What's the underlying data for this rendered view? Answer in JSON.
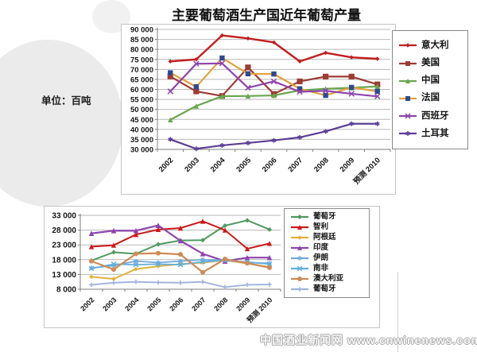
{
  "page": {
    "title": "主要葡萄酒生产国近年葡萄产量",
    "unit_label": "单位：百吨",
    "watermark": "中国酒业新闻网 www.cnwinenews.com"
  },
  "chart_data": [
    {
      "type": "line",
      "title": "",
      "categories": [
        "2002",
        "2003",
        "2004",
        "2005",
        "2006",
        "2007",
        "2008",
        "2009",
        "预测 2010"
      ],
      "xlabel": "",
      "ylabel": "",
      "ylim": [
        30000,
        90000
      ],
      "ytick_step": 5000,
      "grid": true,
      "legend_position": "right",
      "series": [
        {
          "name": "意大利",
          "color": "#C21E1E",
          "marker": "diamond",
          "marker_size": 2.7,
          "line_width": 2.4,
          "values": [
            74000,
            75000,
            87000,
            85500,
            83500,
            74000,
            78300,
            76000,
            75300
          ]
        },
        {
          "name": "美国",
          "color": "#9E3B35",
          "marker": "square",
          "marker_size": 3.6,
          "line_width": 2.2,
          "values": [
            66500,
            59000,
            56700,
            71000,
            57700,
            64000,
            66400,
            66400,
            62500
          ]
        },
        {
          "name": "中国",
          "color": "#69A74F",
          "marker": "triangle",
          "marker_size": 3.3,
          "line_width": 2.2,
          "values": [
            44800,
            51700,
            56600,
            56700,
            57000,
            59500,
            60300,
            60800,
            61500
          ]
        },
        {
          "name": "法国",
          "color": "#E2A33C",
          "marker": "square",
          "marker_color": "#2E4A8F",
          "marker_size": 3.2,
          "line_width": 2.2,
          "values": [
            68300,
            61300,
            75700,
            67800,
            67700,
            60300,
            57000,
            61000,
            59000
          ]
        },
        {
          "name": "西班牙",
          "color": "#8E44AD",
          "marker": "x",
          "marker_size": 3.2,
          "line_width": 2.2,
          "values": [
            59000,
            72800,
            73000,
            60800,
            64000,
            58800,
            59300,
            57800,
            56500
          ]
        },
        {
          "name": "土耳其",
          "color": "#5B3E96",
          "marker": "asterisk",
          "marker_size": 3.0,
          "line_width": 2.2,
          "values": [
            35000,
            30300,
            32000,
            33200,
            34500,
            36000,
            39000,
            42800,
            42800
          ]
        }
      ]
    },
    {
      "type": "line",
      "title": "",
      "categories": [
        "2002",
        "2003",
        "2004",
        "2005",
        "2006",
        "2007",
        "2008",
        "2009",
        "预测 2010"
      ],
      "xlabel": "",
      "ylabel": "",
      "ylim": [
        8000,
        33000
      ],
      "ytick_step": 5000,
      "grid": true,
      "legend_position": "right",
      "series": [
        {
          "name": "葡萄牙",
          "color": "#4E9B5F",
          "marker": "diamond",
          "marker_size": 3.0,
          "line_width": 2.0,
          "values": [
            17700,
            20500,
            20000,
            23200,
            24500,
            24600,
            29500,
            31300,
            28200
          ]
        },
        {
          "name": "智利",
          "color": "#CC1A1A",
          "marker": "triangle",
          "marker_size": 3.2,
          "line_width": 2.0,
          "values": [
            22400,
            22900,
            26500,
            28200,
            28700,
            31000,
            28000,
            21700,
            23500
          ]
        },
        {
          "name": "阿根廷",
          "color": "#E2B13C",
          "marker": "diamond",
          "marker_size": 2.8,
          "line_width": 2.0,
          "values": [
            12200,
            11500,
            14800,
            15800,
            16500,
            17000,
            17800,
            16700,
            15500
          ]
        },
        {
          "name": "印度",
          "color": "#8E44AD",
          "marker": "triangle",
          "marker_size": 3.3,
          "line_width": 2.2,
          "values": [
            26900,
            27800,
            27800,
            29600,
            24400,
            20000,
            17500,
            18700,
            18700
          ]
        },
        {
          "name": "伊朗",
          "color": "#74A9DC",
          "marker": "asterisk",
          "marker_size": 2.8,
          "line_width": 1.8,
          "values": [
            15200,
            16000,
            17500,
            17000,
            17500,
            18000,
            17800,
            17000,
            16800
          ]
        },
        {
          "name": "南非",
          "color": "#62AEDC",
          "marker": "x",
          "marker_size": 2.8,
          "line_width": 1.8,
          "values": [
            15000,
            16500,
            16300,
            16500,
            16300,
            17300,
            17800,
            17200,
            16500
          ]
        },
        {
          "name": "澳大利亚",
          "color": "#CE8B57",
          "marker": "circle",
          "marker_size": 3.0,
          "line_width": 2.2,
          "values": [
            17500,
            14700,
            20000,
            20200,
            19800,
            13700,
            18200,
            16800,
            15300
          ]
        },
        {
          "name": "葡萄牙",
          "color": "#9FB2DC",
          "marker": "plus",
          "marker_size": 2.8,
          "line_width": 1.8,
          "values": [
            9500,
            10200,
            10500,
            10300,
            10200,
            10500,
            8700,
            9500,
            9600
          ]
        }
      ]
    }
  ]
}
